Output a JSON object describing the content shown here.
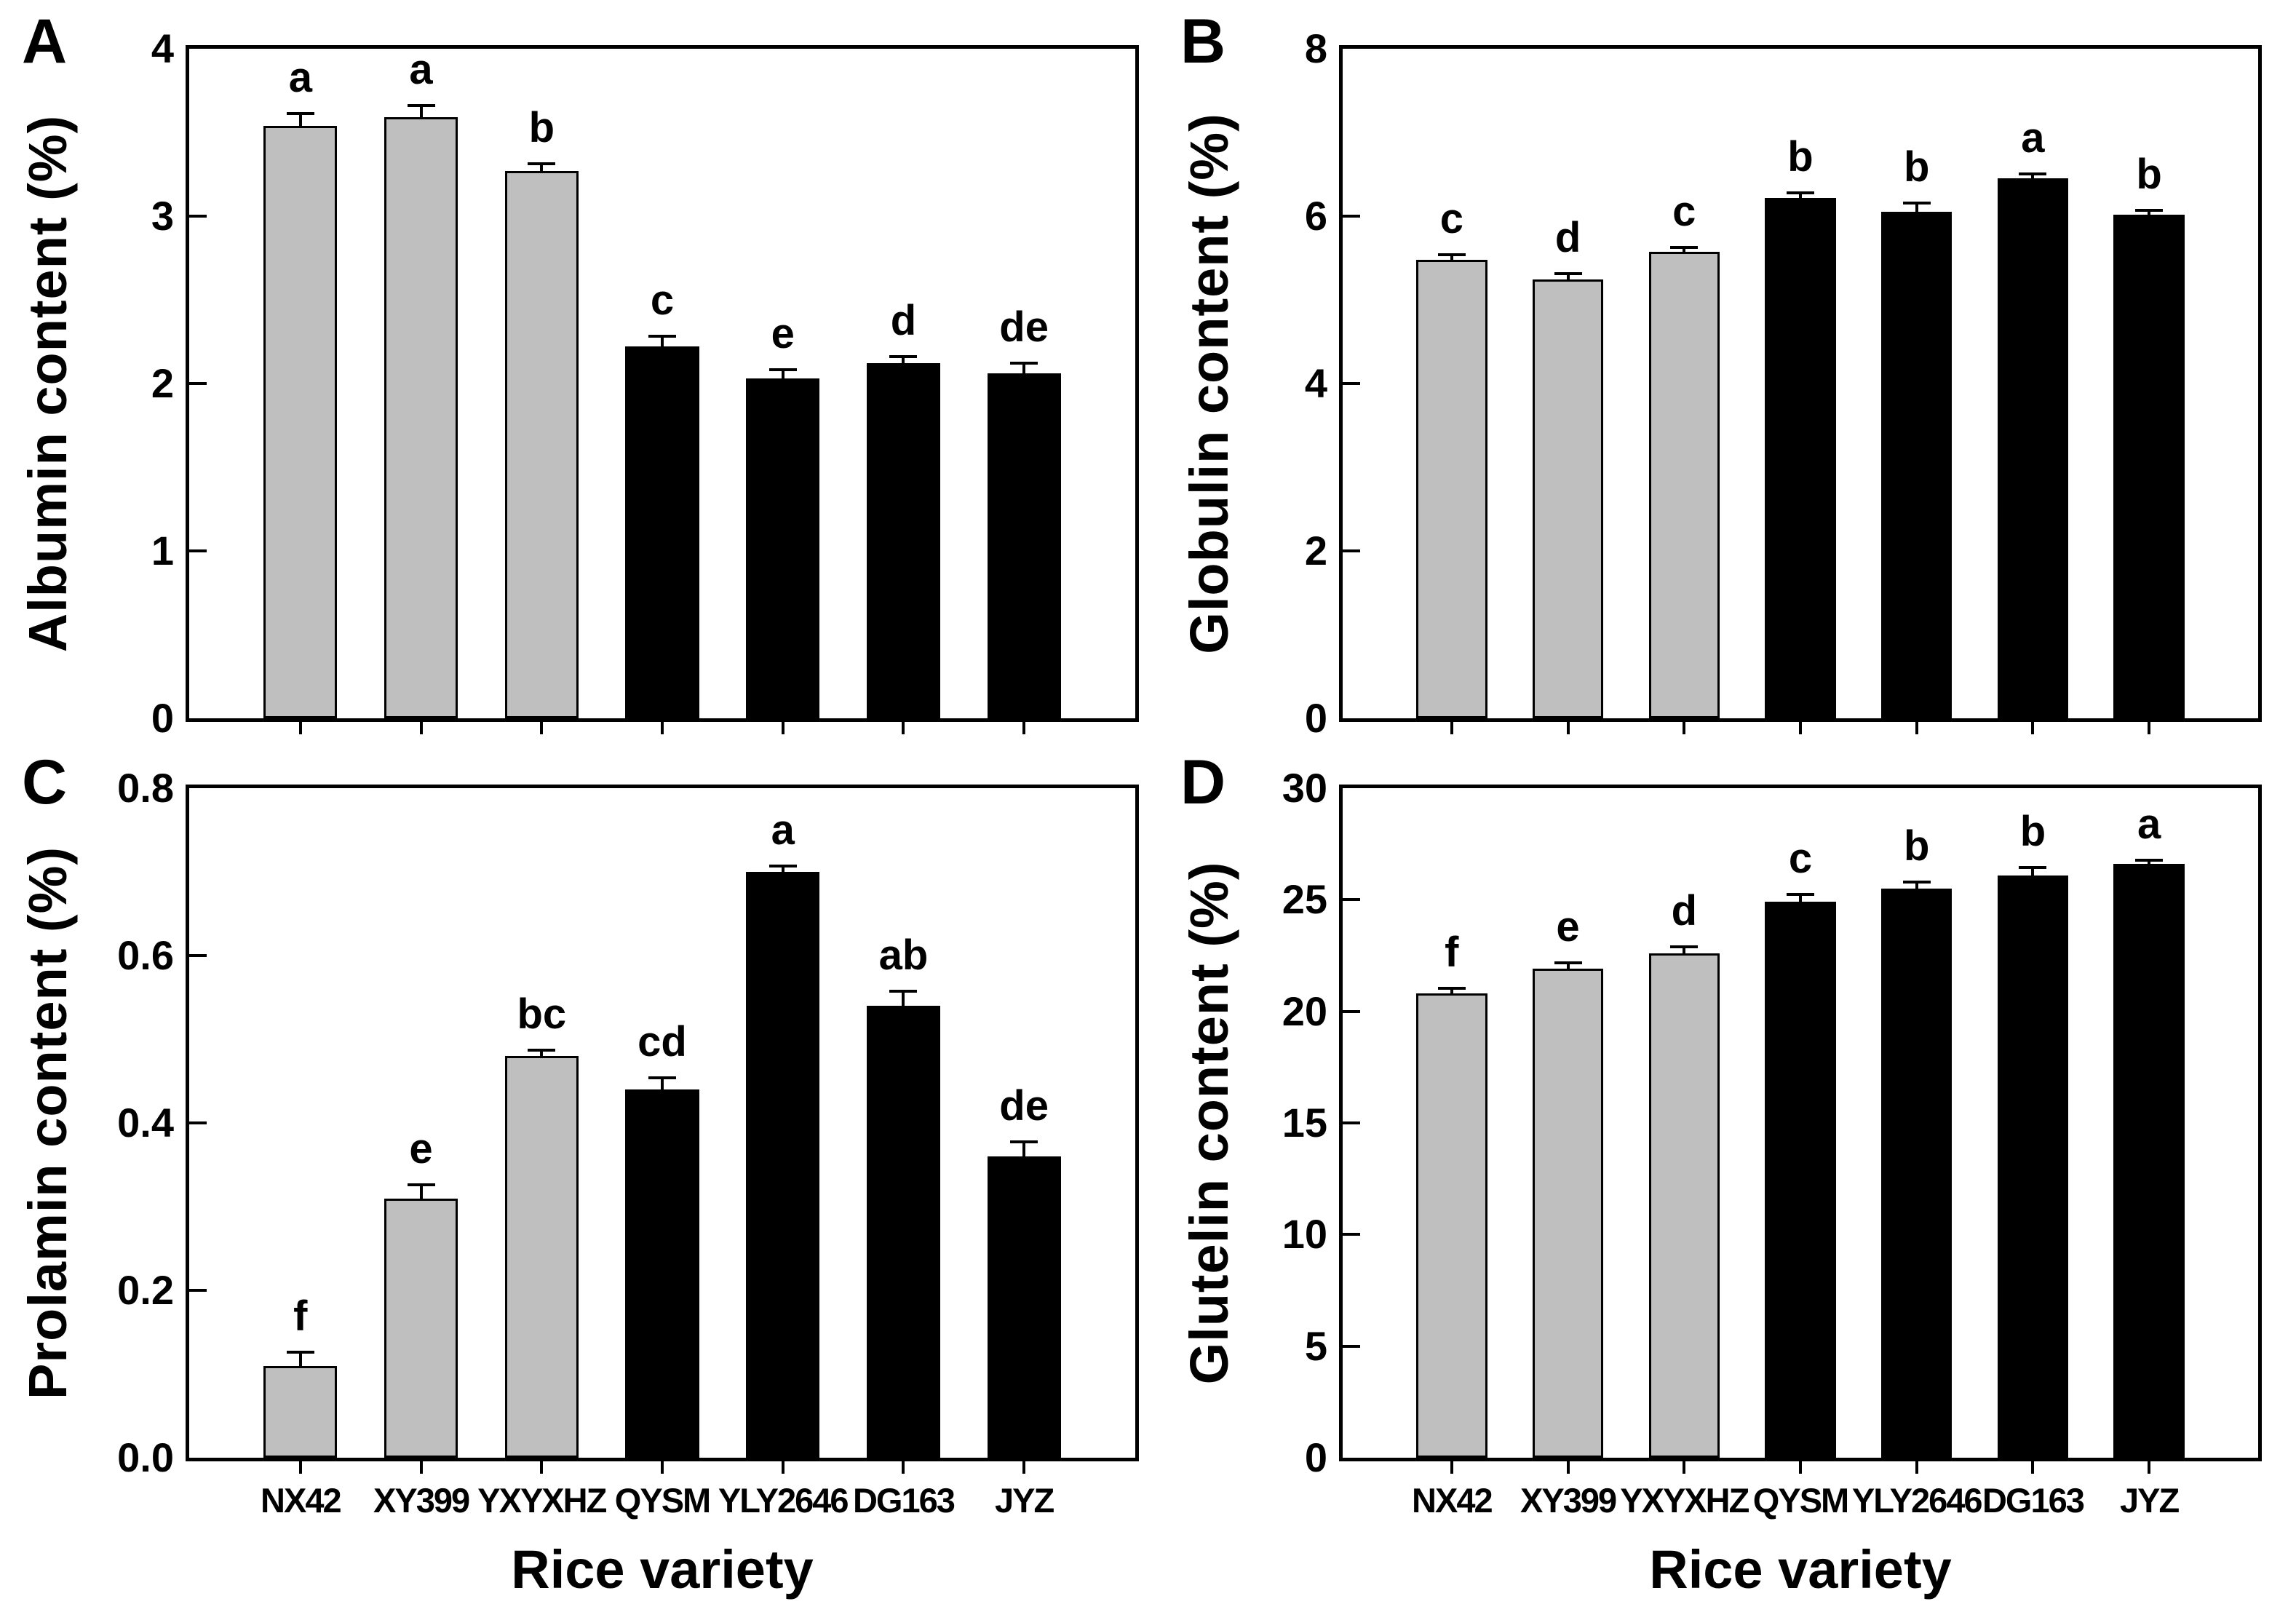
{
  "figure": {
    "xlabel": "Rice variety",
    "categories": [
      "NX42",
      "XY399",
      "YXYXHZ",
      "QYSM",
      "YLY2646",
      "DG163",
      "JYZ"
    ],
    "colors": {
      "gray_bar": "#bfbfbf",
      "black_bar": "#000000",
      "axis": "#000000",
      "background": "#ffffff"
    },
    "bar_color_keys": [
      "gray",
      "gray",
      "gray",
      "black",
      "black",
      "black",
      "black"
    ]
  },
  "chart_data": [
    {
      "type": "bar",
      "panel_letter": "A",
      "ylabel": "Albumin content (%)",
      "ylim": [
        0,
        4
      ],
      "yticks": [
        {
          "label": "0",
          "value": 0
        },
        {
          "label": "1",
          "value": 1
        },
        {
          "label": "2",
          "value": 2
        },
        {
          "label": "3",
          "value": 3
        },
        {
          "label": "4",
          "value": 4
        }
      ],
      "categories": [
        "NX42",
        "XY399",
        "YXYXHZ",
        "QYSM",
        "YLY2646",
        "DG163",
        "JYZ"
      ],
      "values": [
        3.54,
        3.59,
        3.27,
        2.22,
        2.03,
        2.12,
        2.06
      ],
      "errors": [
        0.08,
        0.08,
        0.05,
        0.07,
        0.06,
        0.05,
        0.07
      ],
      "sig_letters": [
        "a",
        "a",
        "b",
        "c",
        "e",
        "d",
        "de"
      ],
      "show_x_tick_labels": false,
      "show_x_title": false,
      "grid": false,
      "legend": "none"
    },
    {
      "type": "bar",
      "panel_letter": "B",
      "ylabel": "Globulin content (%)",
      "ylim": [
        0,
        8
      ],
      "yticks": [
        {
          "label": "0",
          "value": 0
        },
        {
          "label": "2",
          "value": 2
        },
        {
          "label": "4",
          "value": 4
        },
        {
          "label": "6",
          "value": 6
        },
        {
          "label": "8",
          "value": 8
        }
      ],
      "categories": [
        "NX42",
        "XY399",
        "YXYXHZ",
        "QYSM",
        "YLY2646",
        "DG163",
        "JYZ"
      ],
      "values": [
        5.48,
        5.24,
        5.57,
        6.22,
        6.05,
        6.45,
        6.02
      ],
      "errors": [
        0.08,
        0.09,
        0.07,
        0.08,
        0.12,
        0.07,
        0.07
      ],
      "sig_letters": [
        "c",
        "d",
        "c",
        "b",
        "b",
        "a",
        "b"
      ],
      "show_x_tick_labels": false,
      "show_x_title": false,
      "grid": false,
      "legend": "none"
    },
    {
      "type": "bar",
      "panel_letter": "C",
      "ylabel": "Prolamin content (%)",
      "ylim": [
        0,
        0.8
      ],
      "yticks": [
        {
          "label": "0.0",
          "value": 0
        },
        {
          "label": "0.2",
          "value": 0.2
        },
        {
          "label": "0.4",
          "value": 0.4
        },
        {
          "label": "0.6",
          "value": 0.6
        },
        {
          "label": "0.8",
          "value": 0.8
        }
      ],
      "categories": [
        "NX42",
        "XY399",
        "YXYXHZ",
        "QYSM",
        "YLY2646",
        "DG163",
        "JYZ"
      ],
      "values": [
        0.11,
        0.31,
        0.48,
        0.44,
        0.7,
        0.54,
        0.36
      ],
      "errors": [
        0.018,
        0.018,
        0.009,
        0.016,
        0.009,
        0.019,
        0.019
      ],
      "sig_letters": [
        "f",
        "e",
        "bc",
        "cd",
        "a",
        "ab",
        "de"
      ],
      "show_x_tick_labels": true,
      "show_x_title": true,
      "xlabel": "Rice variety",
      "grid": false,
      "legend": "none"
    },
    {
      "type": "bar",
      "panel_letter": "D",
      "ylabel": "Glutelin content (%)",
      "ylim": [
        0,
        30
      ],
      "yticks": [
        {
          "label": "0",
          "value": 0
        },
        {
          "label": "5",
          "value": 5
        },
        {
          "label": "10",
          "value": 10
        },
        {
          "label": "15",
          "value": 15
        },
        {
          "label": "20",
          "value": 20
        },
        {
          "label": "25",
          "value": 25
        },
        {
          "label": "30",
          "value": 30
        }
      ],
      "categories": [
        "NX42",
        "XY399",
        "YXYXHZ",
        "QYSM",
        "YLY2646",
        "DG163",
        "JYZ"
      ],
      "values": [
        20.8,
        21.9,
        22.6,
        24.9,
        25.5,
        26.1,
        26.6
      ],
      "errors": [
        0.3,
        0.35,
        0.35,
        0.4,
        0.35,
        0.4,
        0.25
      ],
      "sig_letters": [
        "f",
        "e",
        "d",
        "c",
        "b",
        "b",
        "a"
      ],
      "show_x_tick_labels": true,
      "show_x_title": true,
      "xlabel": "Rice variety",
      "grid": false,
      "legend": "none"
    }
  ]
}
